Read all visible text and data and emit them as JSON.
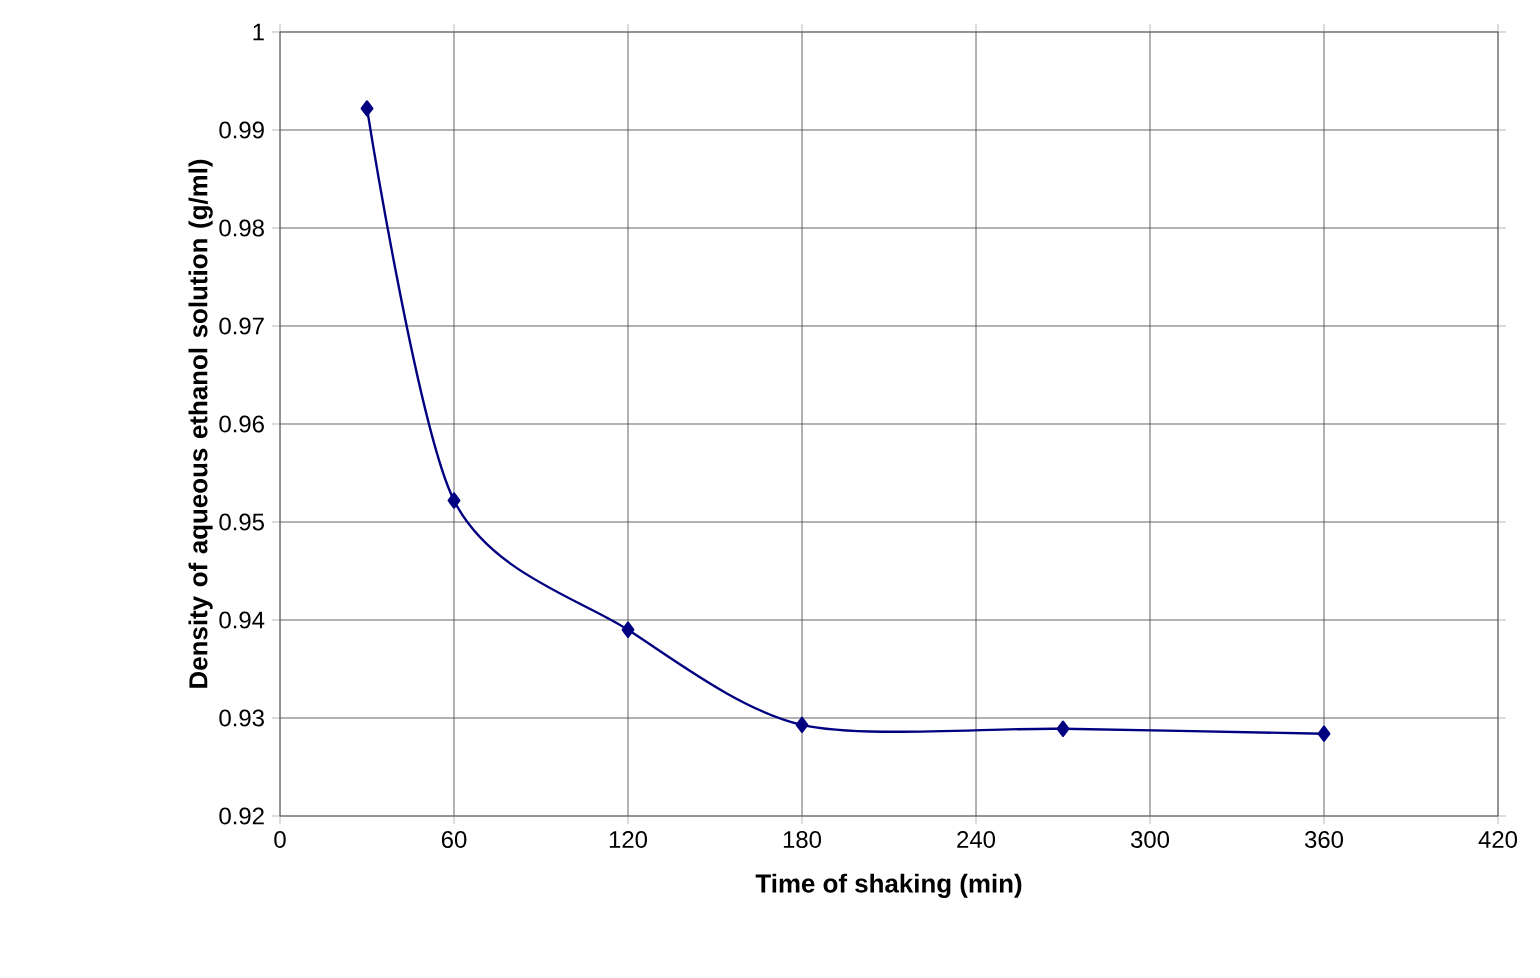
{
  "chart_data": {
    "type": "line",
    "xlabel": "Time of shaking (min)",
    "ylabel": "Density of aqueous ethanol solution (g/ml)",
    "x": [
      30,
      60,
      120,
      180,
      270,
      360
    ],
    "series": [
      {
        "color": "#000080",
        "values": [
          0.9922,
          0.9522,
          0.939,
          0.9293,
          0.9289,
          0.9284
        ]
      }
    ],
    "xlim": [
      0,
      420
    ],
    "xticks": [
      0,
      60,
      120,
      180,
      240,
      300,
      360,
      420
    ],
    "ylim": [
      0.92,
      1
    ],
    "yticks": [
      0.92,
      0.93,
      0.94,
      0.95,
      0.96,
      0.97,
      0.98,
      0.99,
      1
    ],
    "grid": true,
    "marker": "diamond",
    "line_style": "solid"
  }
}
